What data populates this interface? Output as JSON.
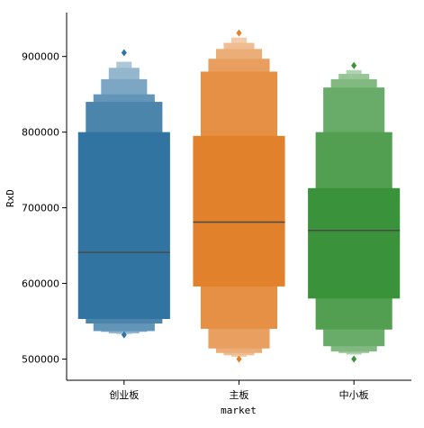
{
  "chart_data": {
    "type": "boxenplot",
    "xlabel": "market",
    "ylabel": "RxD",
    "categories": [
      "创业板",
      "主板",
      "中小板"
    ],
    "ylim": [
      472000,
      958000
    ],
    "yticks": [
      500000,
      600000,
      700000,
      800000,
      900000
    ],
    "ytick_labels": [
      "500000",
      "600000",
      "700000",
      "800000",
      "900000"
    ],
    "grid": false,
    "series": [
      {
        "category": "创业板",
        "color": "#3274a1",
        "median": 641000,
        "boxes": [
          [
            553000,
            800000
          ],
          [
            547000,
            840000
          ],
          [
            537000,
            850000
          ],
          [
            536000,
            870000
          ],
          [
            534000,
            885000
          ],
          [
            533000,
            893000
          ]
        ],
        "outliers": [
          532000,
          905000
        ]
      },
      {
        "category": "主板",
        "color": "#e1812c",
        "median": 681000,
        "boxes": [
          [
            596000,
            795000
          ],
          [
            540000,
            880000
          ],
          [
            514000,
            897000
          ],
          [
            508000,
            910000
          ],
          [
            505000,
            918000
          ],
          [
            503000,
            925000
          ]
        ],
        "outliers": [
          500000,
          931000
        ]
      },
      {
        "category": "中小板",
        "color": "#3a923a",
        "median": 670000,
        "boxes": [
          [
            580000,
            726000
          ],
          [
            539000,
            800000
          ],
          [
            517000,
            859000
          ],
          [
            510000,
            870000
          ],
          [
            508000,
            877000
          ],
          [
            506000,
            882000
          ]
        ],
        "outliers": [
          500000,
          888000
        ]
      }
    ]
  }
}
